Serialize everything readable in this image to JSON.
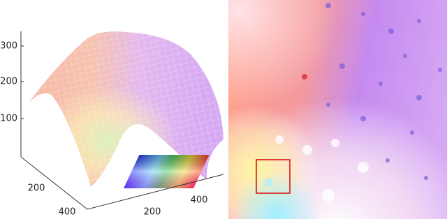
{
  "surface_plot": {
    "zticks": [
      300,
      200,
      100
    ],
    "yticks": [
      200,
      400
    ],
    "xticks": [
      200,
      400
    ]
  }
}
